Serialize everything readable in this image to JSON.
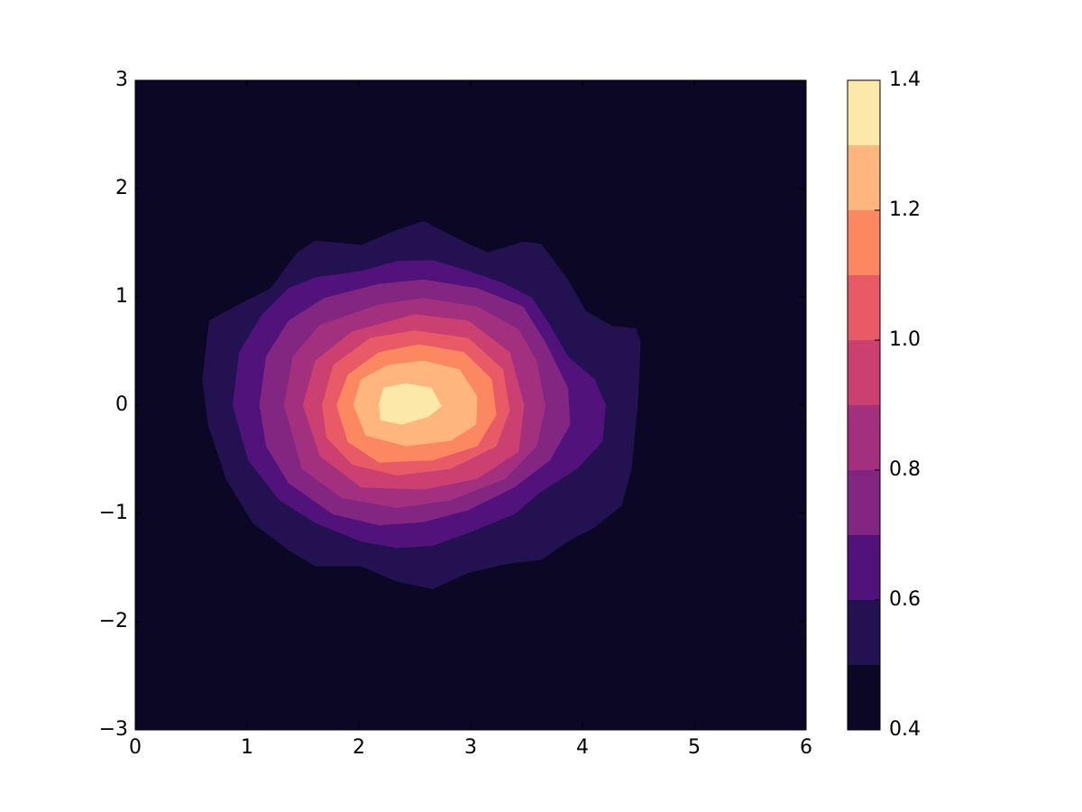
{
  "chart_data": {
    "type": "contourf",
    "xlim": [
      0,
      6
    ],
    "ylim": [
      -3,
      3
    ],
    "xticks": [
      0,
      1,
      2,
      3,
      4,
      5,
      6
    ],
    "yticks": [
      {
        "value": -3,
        "label": "−3"
      },
      {
        "value": -2,
        "label": "−2"
      },
      {
        "value": -1,
        "label": "−1"
      },
      0,
      1,
      2,
      3
    ],
    "levels": [
      0.4,
      0.5,
      0.6,
      0.7,
      0.8,
      0.9,
      1.0,
      1.1,
      1.2,
      1.3,
      1.4
    ],
    "colors": [
      "#0b0724",
      "#231151",
      "#51127c",
      "#822681",
      "#a3307e",
      "#cc3f71",
      "#e85a66",
      "#fb8861",
      "#feb67e",
      "#fce8a8"
    ],
    "colorbar_ticks": [
      0.4,
      0.6,
      0.8,
      {
        "value": 1.0,
        "label": "1.0"
      },
      1.2,
      1.4
    ],
    "contours": [
      {
        "level": 0.5,
        "x": [
          0.66,
          0.89,
          1.21,
          1.45,
          1.61,
          2.02,
          2.34,
          2.58,
          2.9,
          3.15,
          3.47,
          3.63,
          3.87,
          4.03,
          4.27,
          4.48,
          4.52,
          4.5,
          4.44,
          4.35,
          4.11,
          3.87,
          3.63,
          3.31,
          2.98,
          2.66,
          2.34,
          2.02,
          1.61,
          1.37,
          1.05,
          0.81,
          0.65,
          0.6
        ],
        "y": [
          0.78,
          0.91,
          1.08,
          1.41,
          1.52,
          1.48,
          1.62,
          1.7,
          1.53,
          1.41,
          1.51,
          1.49,
          1.16,
          0.87,
          0.73,
          0.71,
          0.58,
          0.08,
          -0.59,
          -0.93,
          -1.13,
          -1.26,
          -1.43,
          -1.47,
          -1.55,
          -1.7,
          -1.63,
          -1.49,
          -1.49,
          -1.34,
          -1.09,
          -0.68,
          -0.18,
          0.24
        ]
      },
      {
        "level": 0.6,
        "x": [
          0.87,
          0.93,
          1.13,
          1.37,
          1.61,
          2.02,
          2.34,
          2.66,
          2.98,
          3.31,
          3.55,
          3.71,
          3.87,
          4.11,
          4.21,
          4.18,
          3.95,
          3.63,
          3.39,
          2.98,
          2.66,
          2.34,
          2.02,
          1.61,
          1.29,
          1.01
        ],
        "y": [
          0,
          0.49,
          0.83,
          1.08,
          1.18,
          1.24,
          1.33,
          1.34,
          1.24,
          1.12,
          0.99,
          0.74,
          0.45,
          0.24,
          0,
          -0.34,
          -0.59,
          -0.8,
          -1.01,
          -1.18,
          -1.3,
          -1.32,
          -1.26,
          -1.09,
          -0.88,
          -0.51
        ]
      },
      {
        "level": 0.7,
        "x": [
          1.11,
          1.17,
          1.37,
          1.69,
          2.18,
          2.58,
          3.06,
          3.47,
          3.67,
          3.87,
          3.89,
          3.71,
          3.39,
          2.98,
          2.58,
          2.18,
          1.77,
          1.37,
          1.17
        ],
        "y": [
          0,
          0.45,
          0.78,
          0.99,
          1.12,
          1.16,
          1.08,
          0.91,
          0.58,
          0.16,
          -0.18,
          -0.51,
          -0.76,
          -0.97,
          -1.08,
          -1.11,
          -1.01,
          -0.72,
          -0.38
        ]
      },
      {
        "level": 0.8,
        "x": [
          1.33,
          1.41,
          1.65,
          2.18,
          2.58,
          3.06,
          3.43,
          3.59,
          3.67,
          3.59,
          3.31,
          2.82,
          2.34,
          1.85,
          1.49
        ],
        "y": [
          0,
          0.45,
          0.74,
          0.93,
          0.99,
          0.91,
          0.7,
          0.41,
          -0.01,
          -0.38,
          -0.68,
          -0.88,
          -0.95,
          -0.86,
          -0.59
        ]
      },
      {
        "level": 0.9,
        "x": [
          1.5,
          1.61,
          1.94,
          2.5,
          2.98,
          3.35,
          3.48,
          3.43,
          3.06,
          2.58,
          2.02,
          1.65
        ],
        "y": [
          0,
          0.41,
          0.68,
          0.84,
          0.78,
          0.49,
          0,
          -0.43,
          -0.68,
          -0.78,
          -0.76,
          -0.47
        ]
      },
      {
        "level": 1.0,
        "x": [
          1.67,
          1.77,
          2.1,
          2.5,
          2.98,
          3.29,
          3.35,
          3.23,
          2.82,
          2.34,
          1.94,
          1.71
        ],
        "y": [
          0,
          0.37,
          0.62,
          0.69,
          0.62,
          0.33,
          -0.05,
          -0.38,
          -0.59,
          -0.65,
          -0.55,
          -0.3
        ]
      },
      {
        "level": 1.1,
        "x": [
          1.8,
          1.9,
          2.18,
          2.54,
          2.94,
          3.19,
          3.23,
          3.06,
          2.66,
          2.18,
          1.9
        ],
        "y": [
          0,
          0.28,
          0.49,
          0.56,
          0.49,
          0.24,
          -0.09,
          -0.38,
          -0.51,
          -0.53,
          -0.34
        ]
      },
      {
        "level": 1.2,
        "x": [
          1.95,
          2.02,
          2.26,
          2.58,
          2.9,
          3.06,
          3.05,
          2.82,
          2.42,
          2.06
        ],
        "y": [
          0,
          0.24,
          0.37,
          0.41,
          0.33,
          0.08,
          -0.18,
          -0.33,
          -0.38,
          -0.28
        ]
      },
      {
        "level": 1.3,
        "x": [
          2.18,
          2.22,
          2.42,
          2.65,
          2.74,
          2.62,
          2.38,
          2.19
        ],
        "y": [
          0.01,
          0.16,
          0.2,
          0.16,
          -0.01,
          -0.11,
          -0.18,
          -0.14
        ]
      }
    ]
  }
}
